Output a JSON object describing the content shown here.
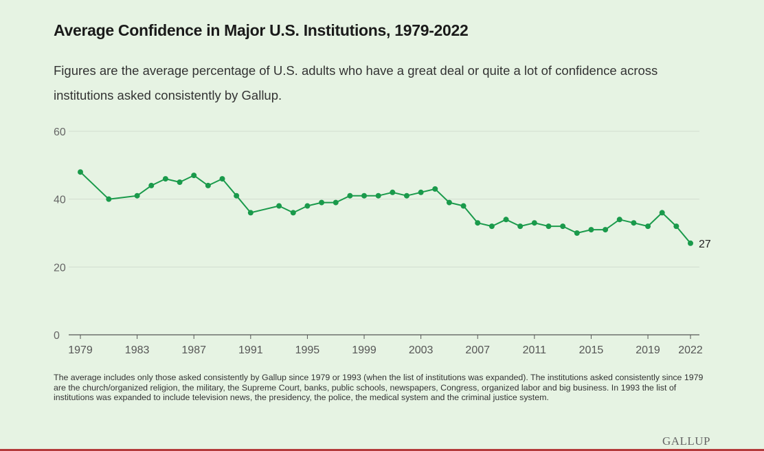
{
  "header": {
    "title": "Average Confidence in Major U.S. Institutions, 1979-2022",
    "subtitle": "Figures are the average percentage of U.S. adults who have a great deal or quite a lot of confidence across institutions asked consistently by Gallup."
  },
  "footnote": "The average includes only those asked consistently by Gallup since 1979 or 1993 (when the list of institutions was expanded). The institutions asked consistently since 1979 are the church/organized religion, the military, the Supreme Court, banks, public schools, newspapers, Congress, organized labor and big business. In 1993 the list of institutions was expanded to include television news, the presidency, the police, the medical system and the criminal justice system.",
  "logo": "GALLUP",
  "colors": {
    "series": "#1a9a4b",
    "grid": "#d2ddcf",
    "axis": "#555555",
    "background": "#e6f3e3"
  },
  "chart_data": {
    "type": "line",
    "title": "Average Confidence in Major U.S. Institutions, 1979-2022",
    "xlabel": "",
    "ylabel": "",
    "xlim": [
      1979,
      2022
    ],
    "ylim": [
      0,
      60
    ],
    "yticks": [
      0,
      20,
      40,
      60
    ],
    "xticks": [
      1979,
      1983,
      1987,
      1991,
      1995,
      1999,
      2003,
      2007,
      2011,
      2015,
      2019,
      2022
    ],
    "grid": true,
    "legend": "none",
    "end_label": "27",
    "series": [
      {
        "x": [
          1979,
          1981,
          1983,
          1984,
          1985,
          1986,
          1987,
          1988,
          1989,
          1990,
          1991,
          1993,
          1994,
          1995,
          1996,
          1997,
          1998,
          1999,
          2000,
          2001,
          2002,
          2003,
          2004,
          2005,
          2006,
          2007,
          2008,
          2009,
          2010,
          2011,
          2012,
          2013,
          2014,
          2015,
          2016,
          2017,
          2018,
          2019,
          2020,
          2021,
          2022
        ],
        "values": [
          48,
          40,
          41,
          44,
          46,
          45,
          47,
          44,
          46,
          41,
          36,
          38,
          36,
          38,
          39,
          39,
          41,
          41,
          41,
          42,
          41,
          42,
          43,
          39,
          38,
          33,
          32,
          34,
          32,
          33,
          32,
          32,
          30,
          31,
          31,
          34,
          33,
          32,
          36,
          32,
          27
        ]
      }
    ]
  }
}
